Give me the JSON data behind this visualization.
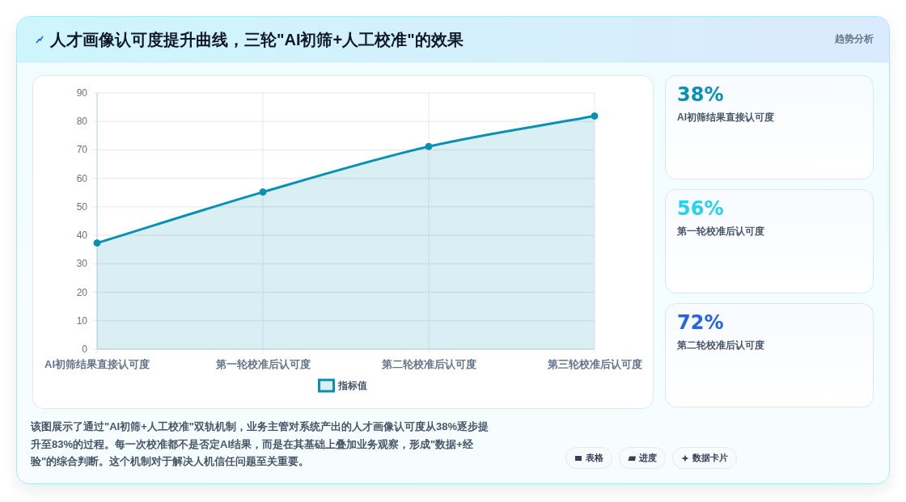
{
  "chart_data": [
    {
      "type": "area",
      "title": "人才画像认可度提升曲线，三轮\"AI初筛+人工校准\"的效果",
      "categories": [
        "AI初筛结果直接认可度",
        "第一轮校准后认可度",
        "第二轮校准后认可度",
        "第三轮校准后认可度"
      ],
      "series": [
        {
          "name": "指标值",
          "color": "#0891b2",
          "values": [
            37.3,
            55.2,
            71.2,
            81.9
          ]
        }
      ],
      "ylim": [
        0,
        90
      ],
      "yticks": [
        0,
        10,
        20,
        30,
        40,
        50,
        60,
        70,
        80,
        90
      ],
      "grid": true,
      "legend": "bottom",
      "marker": "circle",
      "line_style": "solid",
      "annotations": [
        "趋势分析",
        "该图展示了通过\"AI初筛+人工校准\"双轨机制，业务主管对系统产出的人才画像认可度从38%逐步提升至83%的过程。每一次校准都不是否定AI结果，而是在其基础上叠加业务观察，形成\"数据+经验\"的综合判断。这个机制对于解决人机信任问题至关重要。",
        "表格",
        "进度",
        "数据卡片"
      ]
    },
    {
      "type": "other",
      "annotations": [
        "38%",
        "AI初筛结果直接认可度",
        "56%",
        "第一轮校准后认可度",
        "72%",
        "第二轮校准后认可度"
      ],
      "colors": [
        "#0891b2",
        "#22d3ee",
        "#2563eb"
      ]
    }
  ]
}
